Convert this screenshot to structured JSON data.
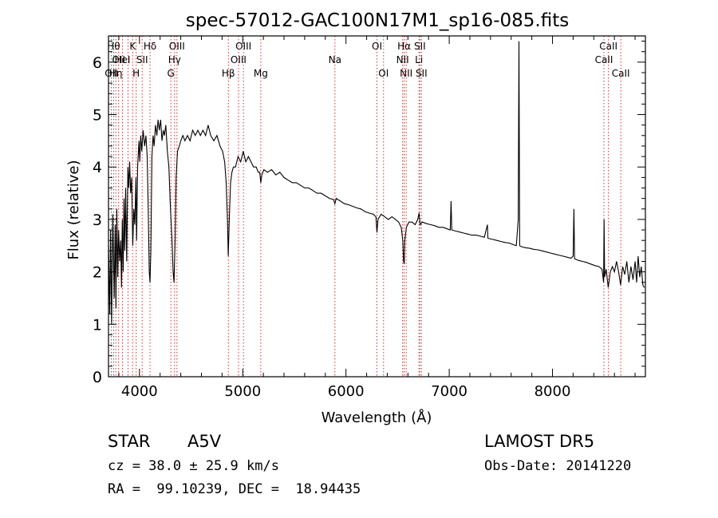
{
  "chart_data": {
    "type": "line",
    "title": "spec-57012-GAC100N17M1_sp16-085.fits",
    "xlabel": "Wavelength (Å)",
    "ylabel": "Flux (relative)",
    "xlim": [
      3700,
      8900
    ],
    "ylim": [
      0,
      6.5
    ],
    "x_ticks": [
      4000,
      5000,
      6000,
      7000,
      8000
    ],
    "y_ticks": [
      0,
      1,
      2,
      3,
      4,
      5,
      6
    ],
    "x_tick_labels": [
      "4000",
      "5000",
      "6000",
      "7000",
      "8000"
    ],
    "y_tick_labels": [
      "0",
      "1",
      "2",
      "3",
      "4",
      "5",
      "6"
    ],
    "grid": false,
    "line_color": "#000000",
    "marker_color": "#cc3333",
    "series": [
      {
        "points": [
          [
            3700,
            2.5
          ],
          [
            3712,
            1.2
          ],
          [
            3720,
            2.8
          ],
          [
            3730,
            1.0
          ],
          [
            3742,
            3.1
          ],
          [
            3755,
            1.5
          ],
          [
            3765,
            2.9
          ],
          [
            3772,
            1.3
          ],
          [
            3780,
            3.2
          ],
          [
            3790,
            1.9
          ],
          [
            3798,
            2.8
          ],
          [
            3808,
            2.2
          ],
          [
            3818,
            2.6
          ],
          [
            3826,
            1.7
          ],
          [
            3834,
            3.0
          ],
          [
            3842,
            2.0
          ],
          [
            3850,
            3.4
          ],
          [
            3858,
            2.4
          ],
          [
            3866,
            3.6
          ],
          [
            3876,
            2.2
          ],
          [
            3888,
            4.0
          ],
          [
            3896,
            3.6
          ],
          [
            3905,
            4.1
          ],
          [
            3915,
            3.5
          ],
          [
            3924,
            3.8
          ],
          [
            3935,
            2.5
          ],
          [
            3945,
            3.2
          ],
          [
            3955,
            2.9
          ],
          [
            3966,
            3.8
          ],
          [
            3972,
            2.6
          ],
          [
            3982,
            4.0
          ],
          [
            3995,
            4.5
          ],
          [
            4003,
            4.1
          ],
          [
            4012,
            4.6
          ],
          [
            4022,
            4.3
          ],
          [
            4035,
            4.7
          ],
          [
            4050,
            4.4
          ],
          [
            4062,
            4.6
          ],
          [
            4075,
            4.2
          ],
          [
            4085,
            3.2
          ],
          [
            4095,
            2.0
          ],
          [
            4102,
            1.8
          ],
          [
            4110,
            2.4
          ],
          [
            4120,
            4.2
          ],
          [
            4132,
            4.6
          ],
          [
            4142,
            4.4
          ],
          [
            4155,
            4.8
          ],
          [
            4168,
            4.6
          ],
          [
            4180,
            4.9
          ],
          [
            4192,
            4.7
          ],
          [
            4205,
            4.9
          ],
          [
            4218,
            4.5
          ],
          [
            4230,
            4.7
          ],
          [
            4242,
            4.6
          ],
          [
            4255,
            4.8
          ],
          [
            4270,
            4.3
          ],
          [
            4285,
            4.0
          ],
          [
            4300,
            3.2
          ],
          [
            4315,
            2.6
          ],
          [
            4326,
            2.0
          ],
          [
            4334,
            1.8
          ],
          [
            4345,
            2.6
          ],
          [
            4355,
            3.8
          ],
          [
            4368,
            4.3
          ],
          [
            4385,
            4.4
          ],
          [
            4400,
            4.5
          ],
          [
            4420,
            4.6
          ],
          [
            4440,
            4.5
          ],
          [
            4465,
            4.6
          ],
          [
            4490,
            4.5
          ],
          [
            4515,
            4.7
          ],
          [
            4540,
            4.6
          ],
          [
            4565,
            4.7
          ],
          [
            4590,
            4.6
          ],
          [
            4615,
            4.7
          ],
          [
            4640,
            4.6
          ],
          [
            4665,
            4.8
          ],
          [
            4690,
            4.6
          ],
          [
            4720,
            4.5
          ],
          [
            4750,
            4.6
          ],
          [
            4780,
            4.4
          ],
          [
            4805,
            4.3
          ],
          [
            4825,
            4.1
          ],
          [
            4840,
            3.7
          ],
          [
            4852,
            3.0
          ],
          [
            4860,
            2.3
          ],
          [
            4870,
            3.0
          ],
          [
            4882,
            3.7
          ],
          [
            4895,
            3.9
          ],
          [
            4910,
            4.0
          ],
          [
            4930,
            4.0
          ],
          [
            4955,
            4.2
          ],
          [
            4980,
            4.1
          ],
          [
            5005,
            4.3
          ],
          [
            5030,
            4.1
          ],
          [
            5055,
            4.2
          ],
          [
            5080,
            4.1
          ],
          [
            5105,
            4.0
          ],
          [
            5130,
            4.0
          ],
          [
            5150,
            3.9
          ],
          [
            5165,
            3.9
          ],
          [
            5175,
            3.7
          ],
          [
            5185,
            3.85
          ],
          [
            5205,
            3.95
          ],
          [
            5240,
            3.9
          ],
          [
            5280,
            3.95
          ],
          [
            5320,
            3.85
          ],
          [
            5360,
            3.9
          ],
          [
            5400,
            3.8
          ],
          [
            5440,
            3.75
          ],
          [
            5480,
            3.7
          ],
          [
            5520,
            3.7
          ],
          [
            5560,
            3.65
          ],
          [
            5600,
            3.6
          ],
          [
            5640,
            3.6
          ],
          [
            5680,
            3.55
          ],
          [
            5720,
            3.5
          ],
          [
            5760,
            3.5
          ],
          [
            5800,
            3.45
          ],
          [
            5840,
            3.4
          ],
          [
            5880,
            3.38
          ],
          [
            5893,
            3.3
          ],
          [
            5905,
            3.4
          ],
          [
            5945,
            3.35
          ],
          [
            5985,
            3.3
          ],
          [
            6025,
            3.28
          ],
          [
            6065,
            3.25
          ],
          [
            6105,
            3.22
          ],
          [
            6145,
            3.2
          ],
          [
            6185,
            3.15
          ],
          [
            6225,
            3.12
          ],
          [
            6265,
            3.1
          ],
          [
            6290,
            3.05
          ],
          [
            6300,
            2.75
          ],
          [
            6310,
            3.0
          ],
          [
            6340,
            3.1
          ],
          [
            6375,
            3.05
          ],
          [
            6410,
            3.0
          ],
          [
            6445,
            3.05
          ],
          [
            6480,
            3.0
          ],
          [
            6510,
            2.95
          ],
          [
            6535,
            2.85
          ],
          [
            6550,
            2.6
          ],
          [
            6558,
            2.2
          ],
          [
            6564,
            2.15
          ],
          [
            6570,
            2.6
          ],
          [
            6585,
            2.85
          ],
          [
            6610,
            2.95
          ],
          [
            6640,
            2.95
          ],
          [
            6670,
            2.9
          ],
          [
            6695,
            3.0
          ],
          [
            6708,
            3.12
          ],
          [
            6718,
            2.9
          ],
          [
            6740,
            2.95
          ],
          [
            6780,
            2.92
          ],
          [
            6820,
            2.9
          ],
          [
            6860,
            2.88
          ],
          [
            6900,
            2.85
          ],
          [
            6940,
            2.85
          ],
          [
            6980,
            2.82
          ],
          [
            7010,
            2.8
          ],
          [
            7018,
            3.35
          ],
          [
            7025,
            2.8
          ],
          [
            7060,
            2.78
          ],
          [
            7100,
            2.76
          ],
          [
            7140,
            2.74
          ],
          [
            7180,
            2.72
          ],
          [
            7220,
            2.7
          ],
          [
            7260,
            2.7
          ],
          [
            7300,
            2.68
          ],
          [
            7340,
            2.66
          ],
          [
            7370,
            2.9
          ],
          [
            7375,
            2.64
          ],
          [
            7420,
            2.62
          ],
          [
            7460,
            2.6
          ],
          [
            7500,
            2.58
          ],
          [
            7540,
            2.56
          ],
          [
            7580,
            2.55
          ],
          [
            7620,
            2.52
          ],
          [
            7650,
            2.5
          ],
          [
            7668,
            3.0
          ],
          [
            7675,
            6.4
          ],
          [
            7682,
            2.5
          ],
          [
            7700,
            2.48
          ],
          [
            7740,
            2.46
          ],
          [
            7780,
            2.45
          ],
          [
            7820,
            2.43
          ],
          [
            7860,
            2.42
          ],
          [
            7900,
            2.4
          ],
          [
            7940,
            2.38
          ],
          [
            7980,
            2.36
          ],
          [
            8020,
            2.34
          ],
          [
            8060,
            2.32
          ],
          [
            8100,
            2.3
          ],
          [
            8140,
            2.28
          ],
          [
            8180,
            2.26
          ],
          [
            8200,
            2.3
          ],
          [
            8208,
            3.2
          ],
          [
            8214,
            2.25
          ],
          [
            8250,
            2.22
          ],
          [
            8290,
            2.2
          ],
          [
            8330,
            2.18
          ],
          [
            8370,
            2.15
          ],
          [
            8410,
            2.12
          ],
          [
            8450,
            2.1
          ],
          [
            8480,
            2.05
          ],
          [
            8495,
            1.8
          ],
          [
            8500,
            3.0
          ],
          [
            8505,
            1.9
          ],
          [
            8520,
            2.05
          ],
          [
            8540,
            1.7
          ],
          [
            8560,
            2.0
          ],
          [
            8580,
            2.1
          ],
          [
            8600,
            2.0
          ],
          [
            8620,
            2.2
          ],
          [
            8640,
            2.0
          ],
          [
            8660,
            1.75
          ],
          [
            8680,
            2.1
          ],
          [
            8700,
            1.95
          ],
          [
            8720,
            2.2
          ],
          [
            8740,
            1.8
          ],
          [
            8760,
            2.1
          ],
          [
            8780,
            1.85
          ],
          [
            8800,
            2.2
          ],
          [
            8815,
            1.8
          ],
          [
            8830,
            2.3
          ],
          [
            8845,
            1.9
          ],
          [
            8860,
            2.1
          ],
          [
            8875,
            1.75
          ],
          [
            8890,
            1.7
          ]
        ]
      }
    ],
    "line_markers": [
      {
        "wl": 3727,
        "label": "OII",
        "row": 2
      },
      {
        "wl": 3750,
        "label": "Hθ",
        "row": 0
      },
      {
        "wl": 3771,
        "label": "Hη",
        "row": 2
      },
      {
        "wl": 3798,
        "label": "OII",
        "row": 1
      },
      {
        "wl": 3835,
        "label": "HeI",
        "row": 1
      },
      {
        "wl": 3889,
        "label": "",
        "row": 1
      },
      {
        "wl": 3934,
        "label": "K",
        "row": 0
      },
      {
        "wl": 3968,
        "label": "H",
        "row": 2
      },
      {
        "wl": 4026,
        "label": "SII",
        "row": 1
      },
      {
        "wl": 4102,
        "label": "Hδ",
        "row": 0
      },
      {
        "wl": 4304,
        "label": "G",
        "row": 2
      },
      {
        "wl": 4340,
        "label": "Hγ",
        "row": 1
      },
      {
        "wl": 4363,
        "label": "OIII",
        "row": 0
      },
      {
        "wl": 4861,
        "label": "Hβ",
        "row": 2
      },
      {
        "wl": 4959,
        "label": "OIII",
        "row": 1
      },
      {
        "wl": 5007,
        "label": "OIII",
        "row": 0
      },
      {
        "wl": 5175,
        "label": "Mg",
        "row": 2
      },
      {
        "wl": 5893,
        "label": "Na",
        "row": 1
      },
      {
        "wl": 6300,
        "label": "OI",
        "row": 0
      },
      {
        "wl": 6364,
        "label": "OI",
        "row": 2
      },
      {
        "wl": 6548,
        "label": "NII",
        "row": 1
      },
      {
        "wl": 6563,
        "label": "Hα",
        "row": 0
      },
      {
        "wl": 6583,
        "label": "NII",
        "row": 2
      },
      {
        "wl": 6707,
        "label": "Li",
        "row": 1
      },
      {
        "wl": 6716,
        "label": "SII",
        "row": 0
      },
      {
        "wl": 6731,
        "label": "SII",
        "row": 2
      },
      {
        "wl": 8498,
        "label": "CaII",
        "row": 1
      },
      {
        "wl": 8542,
        "label": "CaII",
        "row": 0
      },
      {
        "wl": 8662,
        "label": "CaII",
        "row": 2
      }
    ]
  },
  "info": {
    "obj_class": "STAR",
    "subclass": "A5V",
    "survey": "LAMOST DR5",
    "cz": "cz = 38.0 ± 25.9 km/s",
    "obs_date": "Obs-Date: 20141220",
    "coords": "RA =  99.10239, DEC =  18.94435"
  }
}
